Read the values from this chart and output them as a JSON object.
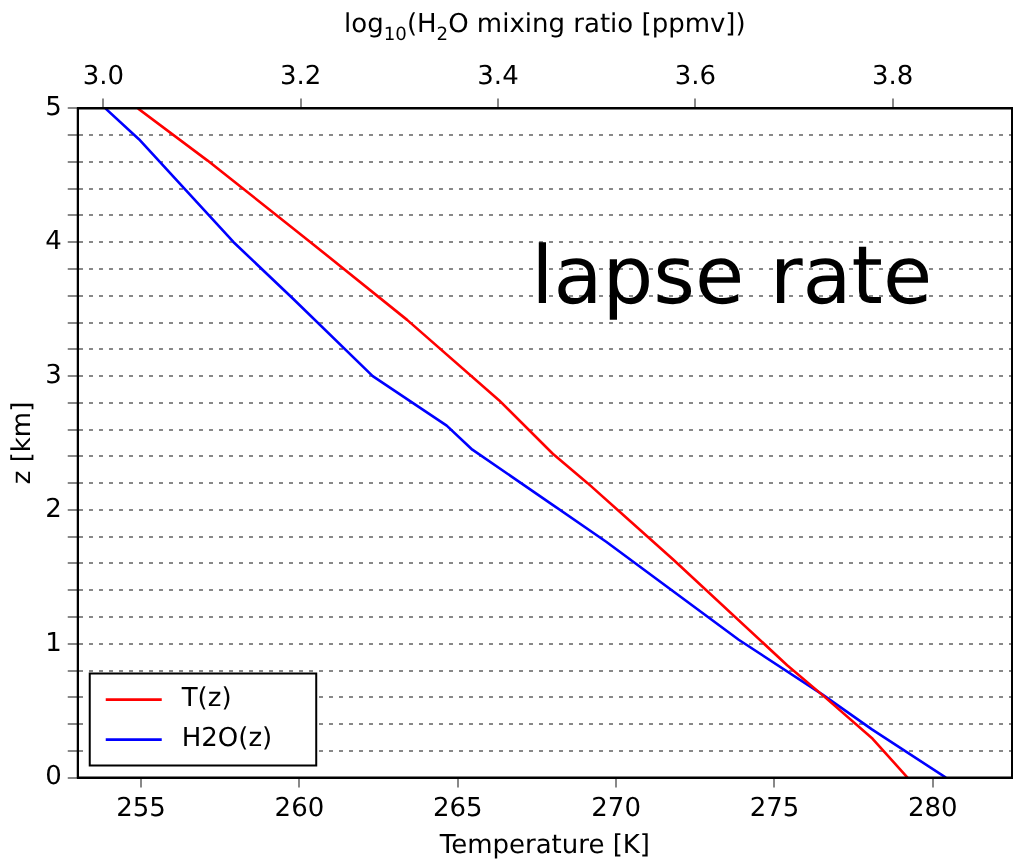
{
  "chart_data": {
    "type": "line",
    "xlabel": "Temperature [K]",
    "ylabel": "z [km]",
    "x2label": "log$_{10}$(H$_{2}$O mixing ratio [ppmv])",
    "annotations": [
      "lapse rate"
    ],
    "xlim": [
      253,
      282.5
    ],
    "xticks": [
      255,
      260,
      265,
      270,
      275,
      280
    ],
    "x2lim": [
      2.974,
      3.921
    ],
    "x2ticks": [
      {
        "value": 3.0,
        "label": "3.0"
      },
      {
        "value": 3.2,
        "label": "3.2"
      },
      {
        "value": 3.4,
        "label": "3.4"
      },
      {
        "value": 3.6,
        "label": "3.6"
      },
      {
        "value": 3.8,
        "label": "3.8"
      }
    ],
    "ylim": [
      0,
      5
    ],
    "yticks": [
      0,
      {
        "value": 0.2,
        "label": null
      },
      {
        "value": 0.4,
        "label": null
      },
      {
        "value": 0.6,
        "label": null
      },
      {
        "value": 0.8,
        "label": null
      },
      1,
      {
        "value": 1.2,
        "label": null
      },
      {
        "value": 1.4,
        "label": null
      },
      {
        "value": 1.6,
        "label": null
      },
      {
        "value": 1.8,
        "label": null
      },
      2,
      {
        "value": 2.2,
        "label": null
      },
      {
        "value": 2.4,
        "label": null
      },
      {
        "value": 2.6,
        "label": null
      },
      {
        "value": 2.8,
        "label": null
      },
      3,
      {
        "value": 3.2,
        "label": null
      },
      {
        "value": 3.4,
        "label": null
      },
      {
        "value": 3.6,
        "label": null
      },
      {
        "value": 3.8,
        "label": null
      },
      4,
      {
        "value": 4.2,
        "label": null
      },
      {
        "value": 4.4,
        "label": null
      },
      {
        "value": 4.6,
        "label": null
      },
      {
        "value": 4.8,
        "label": null
      },
      5
    ],
    "grid": "y",
    "legend": "bottom left",
    "marker": "none",
    "line_style": "solid",
    "series": [
      {
        "name": "T(z)",
        "color": "#ff0000",
        "x": [
          279.2,
          278.1,
          276.5,
          275.4,
          271.8,
          269.1,
          268.0,
          266.3,
          263.4,
          260.3,
          257.1,
          254.9
        ],
        "values": [
          0,
          0.29,
          0.62,
          0.84,
          1.63,
          2.2,
          2.42,
          2.82,
          3.42,
          4.01,
          4.61,
          5
        ]
      },
      {
        "name": "H2O(z)",
        "color": "#0000ff",
        "axis": "x2",
        "x": [
          3.854,
          3.779,
          3.729,
          3.644,
          3.51,
          3.455,
          3.374,
          3.348,
          3.273,
          3.192,
          3.132,
          3.036,
          3.002
        ],
        "values": [
          0,
          0.36,
          0.62,
          1.03,
          1.76,
          2.04,
          2.45,
          2.63,
          3.0,
          3.58,
          4.0,
          4.77,
          5
        ]
      }
    ]
  }
}
